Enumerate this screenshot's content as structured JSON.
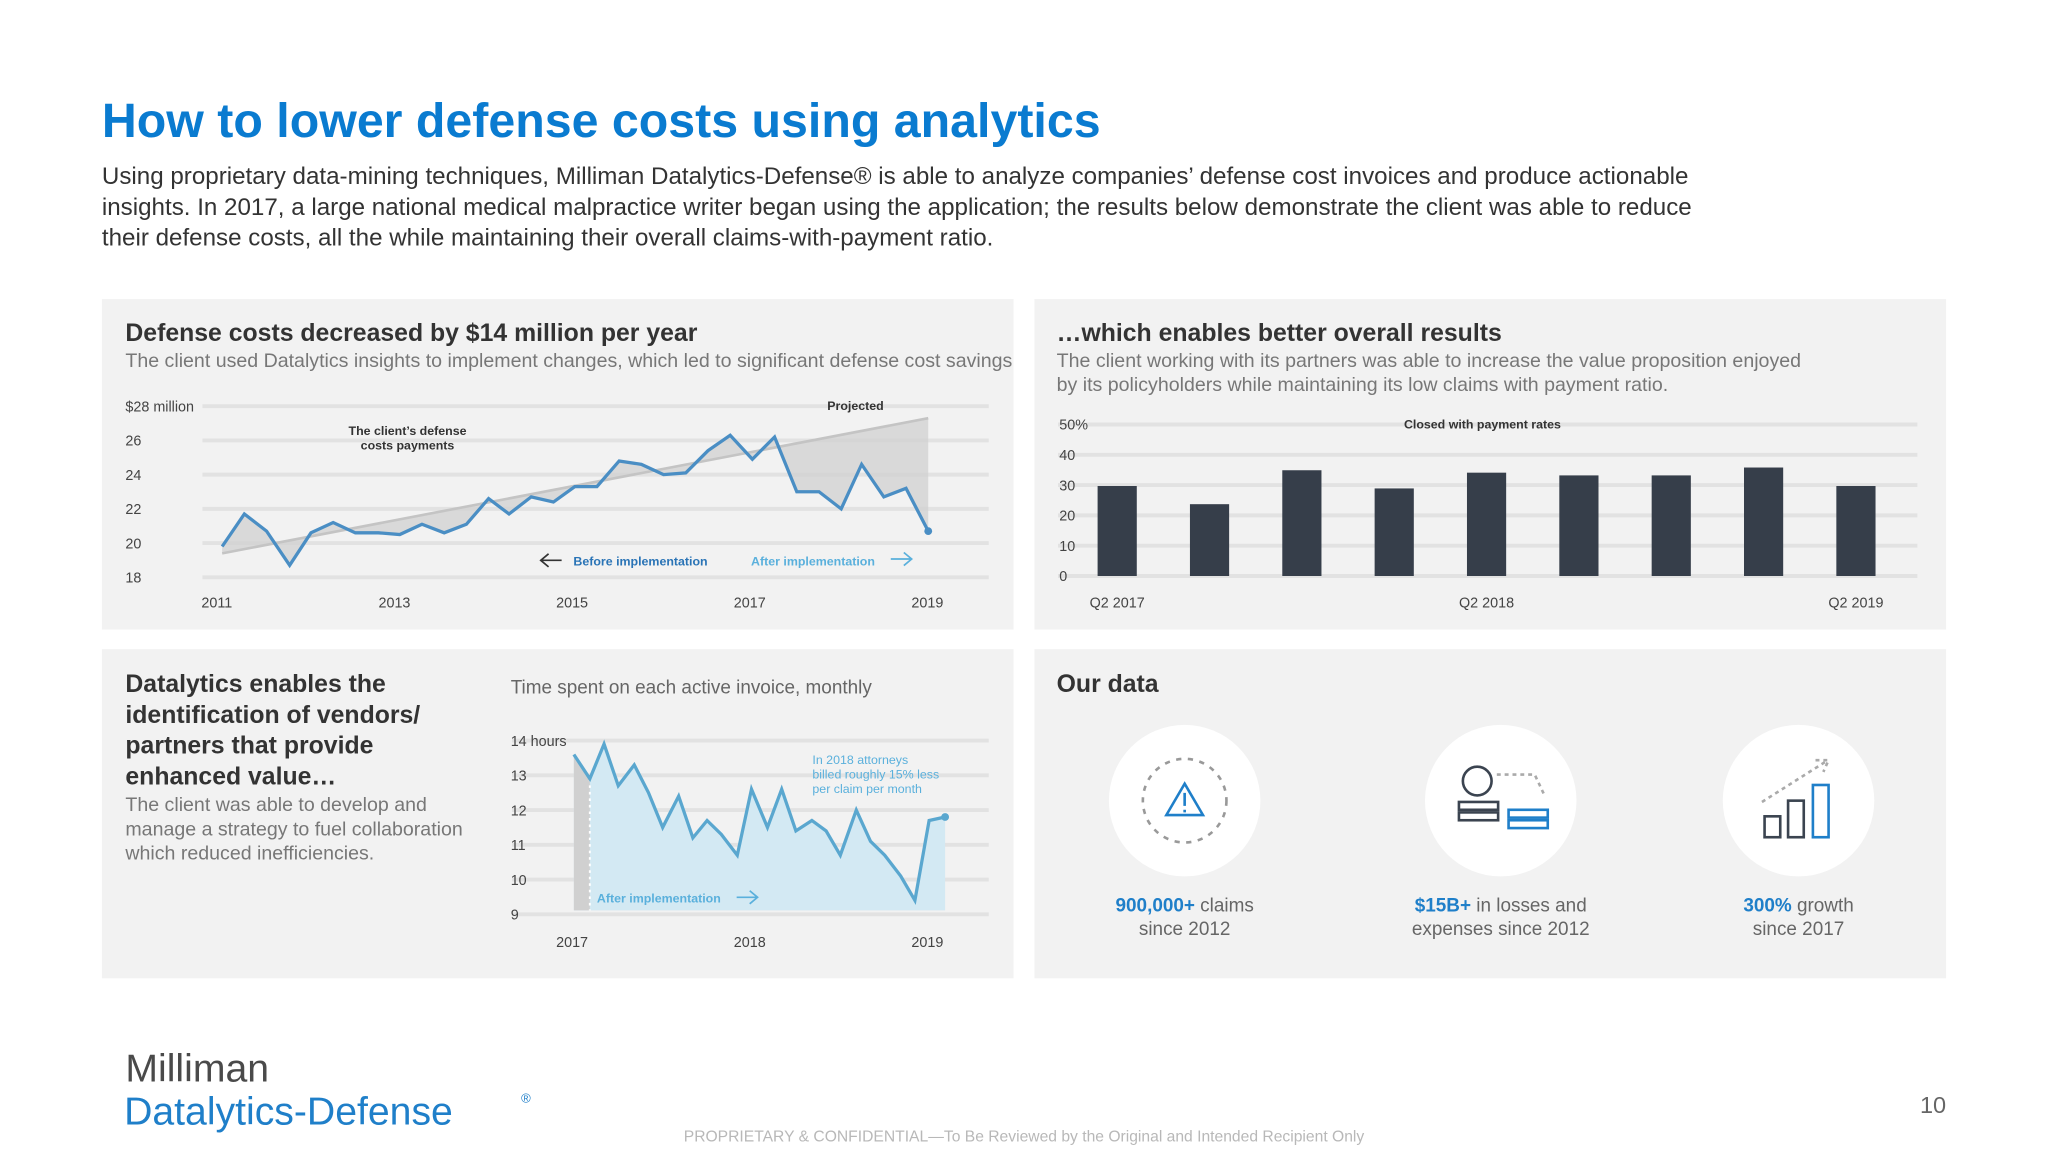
{
  "header": {
    "title": "How to lower defense costs using analytics",
    "intro": [
      "Using proprietary data-mining techniques, Milliman Datalytics-Defense® is able to analyze companies’ defense cost invoices and produce actionable",
      "insights. In 2017, a large national medical malpractice writer began using the application; the results below demonstrate the client was able to reduce",
      "their defense costs, all the while maintaining their overall claims-with-payment ratio."
    ]
  },
  "panels": [
    {
      "title": "Defense costs decreased by $14 million per year",
      "subtitle": [
        "The client used Datalytics insights to implement changes, which led to significant defense cost savings"
      ]
    },
    {
      "title": "…which enables better overall results",
      "subtitle": [
        "The client working with its partners was able to increase the value proposition enjoyed",
        "by its policyholders while maintaining its low claims with payment ratio."
      ]
    },
    {
      "title": [
        "Datalytics enables the",
        "identification of vendors/",
        "partners that provide",
        "enhanced value…"
      ],
      "subtitle": [
        "The client was able to develop and",
        "manage a strategy to fuel collaboration",
        "which reduced inefficiencies."
      ]
    },
    {
      "title": "Our data"
    }
  ],
  "chart_data": [
    {
      "type": "line",
      "xlim": [
        2011,
        2019
      ],
      "xticks": [
        2011,
        2013,
        2015,
        2017,
        2019
      ],
      "ylim": [
        18,
        28
      ],
      "yticks": [
        18,
        20,
        22,
        24,
        26,
        {
          "value": 28,
          "label": "$28 million"
        }
      ],
      "grid": true,
      "fill_between_color": "#d2d2d2",
      "annotations": [
        "The client’s defense",
        "costs payments",
        "Projected",
        "Before implementation",
        "After implementation"
      ],
      "series": [
        {
          "color": "#4a8ec4",
          "x": [
            2011.06,
            2011.31,
            2011.56,
            2011.82,
            2012.06,
            2012.31,
            2012.56,
            2012.82,
            2013.06,
            2013.31,
            2013.56,
            2013.81,
            2014.06,
            2014.29,
            2014.54,
            2014.79,
            2015.03,
            2015.28,
            2015.53,
            2015.78,
            2016.03,
            2016.28,
            2016.53,
            2016.78,
            2017.03,
            2017.28,
            2017.53,
            2017.78,
            2018.03,
            2018.26,
            2018.51,
            2018.76,
            2019.01
          ],
          "values": [
            19.8,
            21.7,
            20.7,
            18.7,
            20.6,
            21.2,
            20.6,
            20.6,
            20.5,
            21.1,
            20.6,
            21.1,
            22.6,
            21.7,
            22.7,
            22.4,
            23.3,
            23.3,
            24.8,
            24.6,
            24.0,
            24.1,
            25.4,
            26.3,
            24.9,
            26.2,
            23.0,
            23.0,
            22.0,
            24.6,
            22.7,
            23.2,
            20.7
          ]
        },
        {
          "color": "#c4c4c4",
          "x": [
            2011.06,
            2019.01
          ],
          "values": [
            19.4,
            27.3
          ]
        }
      ]
    },
    {
      "type": "bar",
      "title": "Closed with payment rates",
      "categories": [
        "Q2 2017",
        null,
        null,
        null,
        "Q2 2018",
        null,
        null,
        null,
        "Q2 2019"
      ],
      "values": [
        29.7,
        23.7,
        34.9,
        28.9,
        34.1,
        33.2,
        33.2,
        35.8,
        29.7
      ],
      "color": "#363e4a",
      "ylim": [
        0,
        50
      ],
      "yticks": [
        0,
        10,
        20,
        30,
        40,
        {
          "value": 50,
          "label": "50%"
        }
      ],
      "grid": true
    },
    {
      "type": "line",
      "title": "Time spent on each active invoice, monthly",
      "xlim": [
        2017,
        2019
      ],
      "xticks": [
        2017,
        2018,
        2019
      ],
      "ylim": [
        9,
        14
      ],
      "yticks": [
        9,
        10,
        11,
        12,
        13,
        {
          "value": 14,
          "label": "14 hours"
        }
      ],
      "grid": true,
      "area_color": "#d3e9f3",
      "annotations": [
        "In 2018 attorneys",
        "billed roughly 15% less",
        "per claim per month",
        "After implementation"
      ],
      "series": [
        {
          "color": "#5aa7cf",
          "x": [
            2017.01,
            2017.1,
            2017.18,
            2017.26,
            2017.35,
            2017.43,
            2017.51,
            2017.6,
            2017.68,
            2017.76,
            2017.84,
            2017.93,
            2018.01,
            2018.1,
            2018.18,
            2018.26,
            2018.35,
            2018.43,
            2018.51,
            2018.6,
            2018.68,
            2018.76,
            2018.85,
            2018.93,
            2019.01,
            2019.1
          ],
          "values": [
            13.6,
            12.9,
            13.9,
            12.7,
            13.3,
            12.5,
            11.5,
            12.4,
            11.2,
            11.7,
            11.3,
            10.7,
            12.6,
            11.5,
            12.6,
            11.4,
            11.7,
            11.4,
            10.7,
            12.0,
            11.1,
            10.7,
            10.1,
            9.4,
            11.7,
            11.8
          ]
        }
      ]
    }
  ],
  "our_data": [
    {
      "highlight": "900,000+",
      "text": [
        "claims",
        "since 2012"
      ]
    },
    {
      "highlight": "$15B+",
      "text": [
        "in losses and",
        "expenses since 2012"
      ]
    },
    {
      "highlight": "300%",
      "text": [
        "growth",
        "since 2017"
      ]
    }
  ],
  "footer": {
    "logo": [
      "Milliman",
      "Datalytics-Defense",
      "®"
    ],
    "notice": "PROPRIETARY & CONFIDENTIAL—To Be Reviewed by the Original and Intended Recipient Only",
    "page": "10"
  }
}
